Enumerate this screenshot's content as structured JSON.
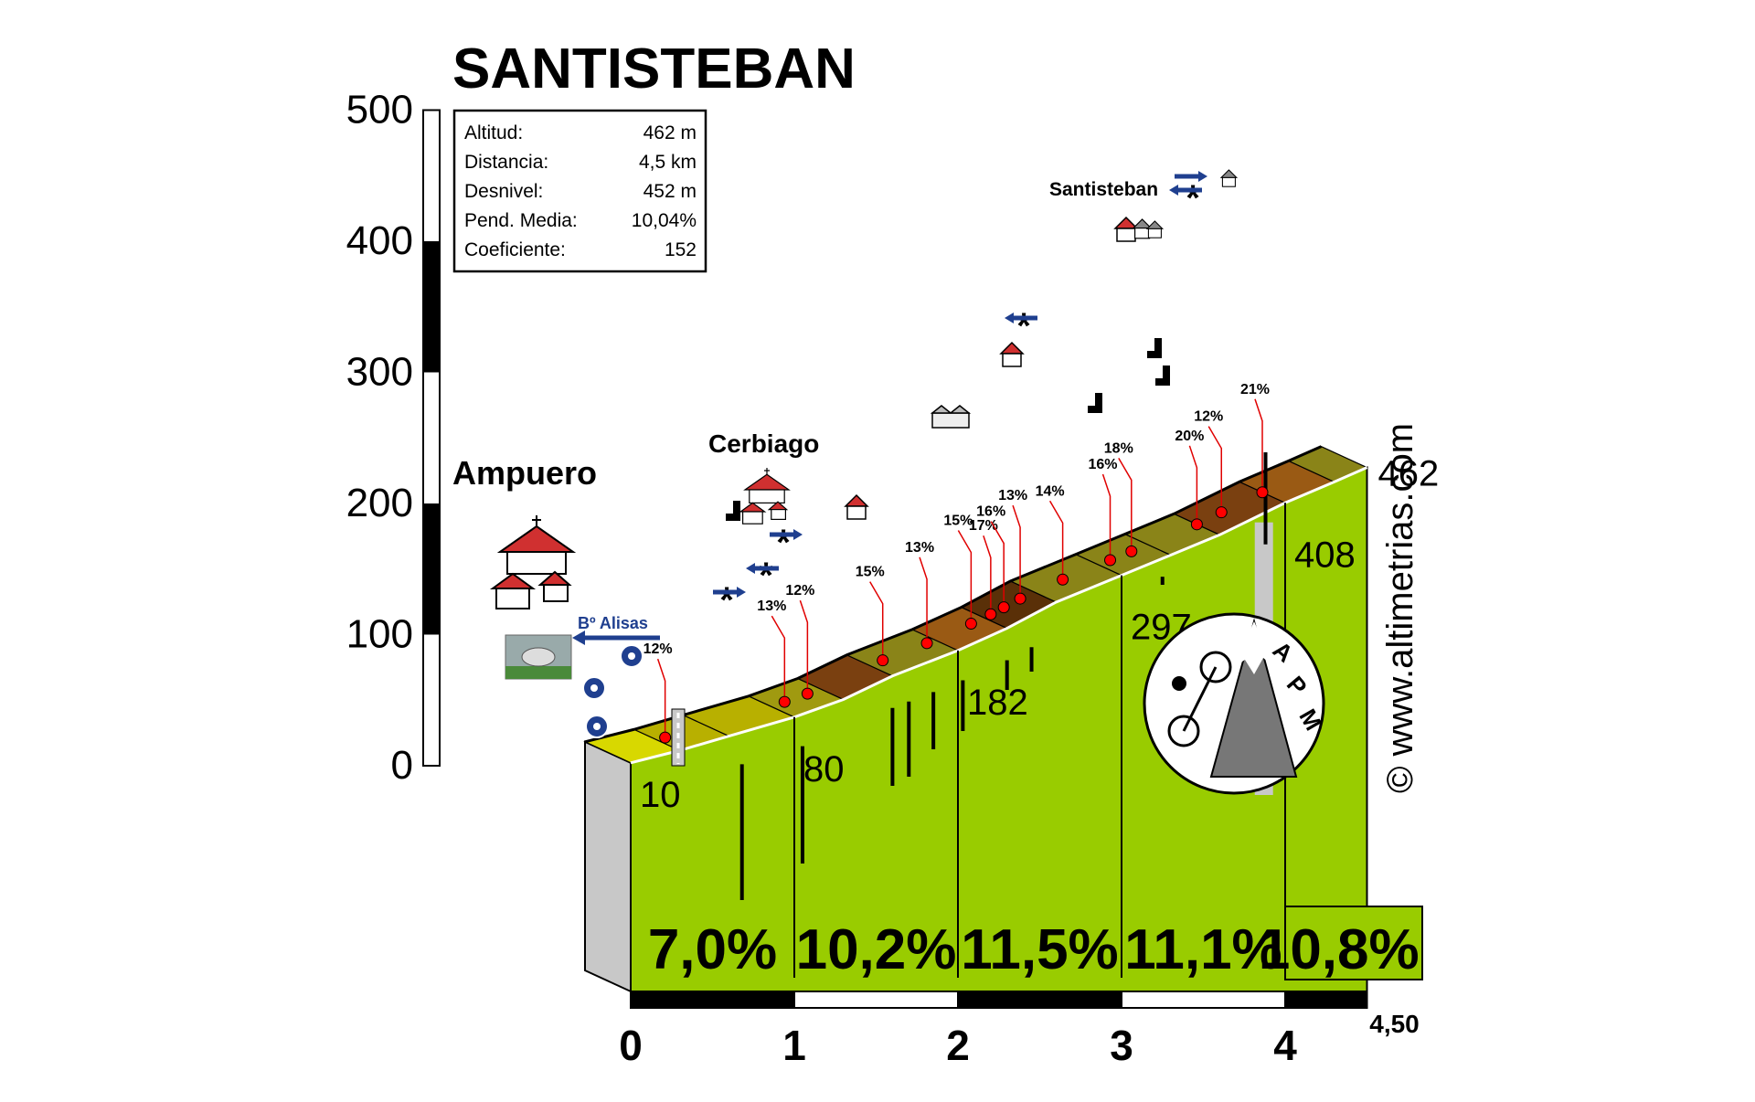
{
  "title": "SANTISTEBAN",
  "stats": [
    {
      "label": "Altitud:",
      "value": "462 m"
    },
    {
      "label": "Distancia:",
      "value": "4,5 km"
    },
    {
      "label": "Desnivel:",
      "value": "452 m"
    },
    {
      "label": "Pend. Media:",
      "value": "10,04%"
    },
    {
      "label": "Coeficiente:",
      "value": "152"
    }
  ],
  "places": {
    "start": "Ampuero",
    "village": "Cerbiago",
    "top": "Santisteban",
    "junction": "Bº Alisas"
  },
  "watermark": "© www.altimetrias.com",
  "logo": {
    "text": "APM"
  },
  "colors": {
    "profile_fill": "#99cc00",
    "side": "#c8c8c8",
    "road_marker": "#ff0000",
    "sign_blue": "#1f3f8f"
  },
  "chart_data": {
    "type": "area",
    "title": "SANTISTEBAN",
    "xlabel": "",
    "ylabel": "",
    "xlim": [
      0,
      4.5
    ],
    "ylim": [
      0,
      500
    ],
    "y_ticks": [
      0,
      100,
      200,
      300,
      400,
      500
    ],
    "x_ticks": [
      "0",
      "1",
      "2",
      "3",
      "4",
      "4,50"
    ],
    "x_tick_values": [
      0,
      1,
      2,
      3,
      4,
      4.5
    ],
    "profile_km": [
      0,
      0.3,
      0.6,
      1.0,
      1.3,
      1.6,
      2.0,
      2.3,
      2.6,
      3.0,
      3.3,
      3.6,
      4.0,
      4.3,
      4.5
    ],
    "profile_alt": [
      10,
      29,
      51,
      80,
      107,
      143,
      182,
      216,
      256,
      297,
      328,
      359,
      408,
      440,
      462
    ],
    "altitude_labels": [
      {
        "km": 0,
        "alt": 10,
        "text": "10"
      },
      {
        "km": 1,
        "alt": 80,
        "text": "80"
      },
      {
        "km": 2,
        "alt": 182,
        "text": "182"
      },
      {
        "km": 3,
        "alt": 297,
        "text": "297"
      },
      {
        "km": 4,
        "alt": 408,
        "text": "408"
      },
      {
        "km": 4.5,
        "alt": 462,
        "text": "462"
      }
    ],
    "segment_gradients": [
      {
        "from": 0,
        "to": 1,
        "text": "7,0%"
      },
      {
        "from": 1,
        "to": 2,
        "text": "10,2%"
      },
      {
        "from": 2,
        "to": 3,
        "text": "11,5%"
      },
      {
        "from": 3,
        "to": 4,
        "text": "11,1%"
      },
      {
        "from": 4,
        "to": 4.5,
        "text": "10,8%"
      }
    ],
    "gradient_markers": [
      {
        "km": 0.35,
        "text": "12%"
      },
      {
        "km": 1.08,
        "text": "13%"
      },
      {
        "km": 1.22,
        "text": "12%"
      },
      {
        "km": 1.68,
        "text": "15%"
      },
      {
        "km": 1.95,
        "text": "13%"
      },
      {
        "km": 2.22,
        "text": "15%"
      },
      {
        "km": 2.34,
        "text": "17%"
      },
      {
        "km": 2.42,
        "text": "16%"
      },
      {
        "km": 2.52,
        "text": "13%"
      },
      {
        "km": 2.78,
        "text": "14%"
      },
      {
        "km": 3.07,
        "text": "16%"
      },
      {
        "km": 3.2,
        "text": "18%"
      },
      {
        "km": 3.6,
        "text": "20%"
      },
      {
        "km": 3.75,
        "text": "12%"
      },
      {
        "km": 4.0,
        "text": "21%"
      }
    ]
  }
}
